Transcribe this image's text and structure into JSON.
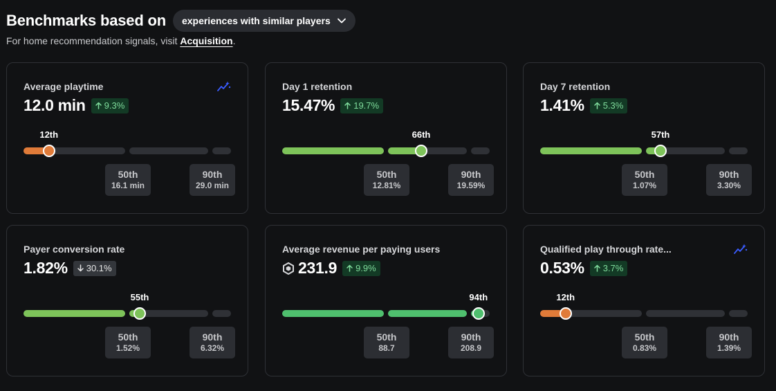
{
  "header": {
    "title": "Benchmarks based on",
    "dropdown_label": "experiences with similar players",
    "subtitle_prefix": "For home recommendation signals, visit ",
    "subtitle_link": "Acquisition",
    "subtitle_suffix": "."
  },
  "colors": {
    "orange": "#e07b39",
    "green_light": "#7ec35a",
    "green": "#4fbf6e",
    "track": "#2f3136"
  },
  "cards": [
    {
      "label": "Average playtime",
      "value": "12.0 min",
      "change": "9.3%",
      "direction": "up",
      "has_trend_icon": true,
      "has_robux": false,
      "percentile": 12,
      "percentile_label": "12th",
      "fill": "orange",
      "ticks": [
        {
          "p": "50th",
          "v": "16.1 min"
        },
        {
          "p": "90th",
          "v": "29.0 min"
        }
      ]
    },
    {
      "label": "Day 1 retention",
      "value": "15.47%",
      "change": "19.7%",
      "direction": "up",
      "has_trend_icon": false,
      "has_robux": false,
      "percentile": 66,
      "percentile_label": "66th",
      "fill": "green_light",
      "ticks": [
        {
          "p": "50th",
          "v": "12.81%"
        },
        {
          "p": "90th",
          "v": "19.59%"
        }
      ]
    },
    {
      "label": "Day 7 retention",
      "value": "1.41%",
      "change": "5.3%",
      "direction": "up",
      "has_trend_icon": false,
      "has_robux": false,
      "percentile": 57,
      "percentile_label": "57th",
      "fill": "green_light",
      "ticks": [
        {
          "p": "50th",
          "v": "1.07%"
        },
        {
          "p": "90th",
          "v": "3.30%"
        }
      ]
    },
    {
      "label": "Payer conversion rate",
      "value": "1.82%",
      "change": "30.1%",
      "direction": "down",
      "has_trend_icon": false,
      "has_robux": false,
      "percentile": 55,
      "percentile_label": "55th",
      "fill": "green_light",
      "ticks": [
        {
          "p": "50th",
          "v": "1.52%"
        },
        {
          "p": "90th",
          "v": "6.32%"
        }
      ]
    },
    {
      "label": "Average revenue per paying users",
      "value": "231.9",
      "change": "9.9%",
      "direction": "up",
      "has_trend_icon": false,
      "has_robux": true,
      "percentile": 94,
      "percentile_label": "94th",
      "fill": "green",
      "ticks": [
        {
          "p": "50th",
          "v": "88.7"
        },
        {
          "p": "90th",
          "v": "208.9"
        }
      ]
    },
    {
      "label": "Qualified play through rate...",
      "value": "0.53%",
      "change": "3.7%",
      "direction": "up",
      "has_trend_icon": true,
      "has_robux": false,
      "percentile": 12,
      "percentile_label": "12th",
      "fill": "orange",
      "ticks": [
        {
          "p": "50th",
          "v": "0.83%"
        },
        {
          "p": "90th",
          "v": "1.39%"
        }
      ]
    }
  ]
}
